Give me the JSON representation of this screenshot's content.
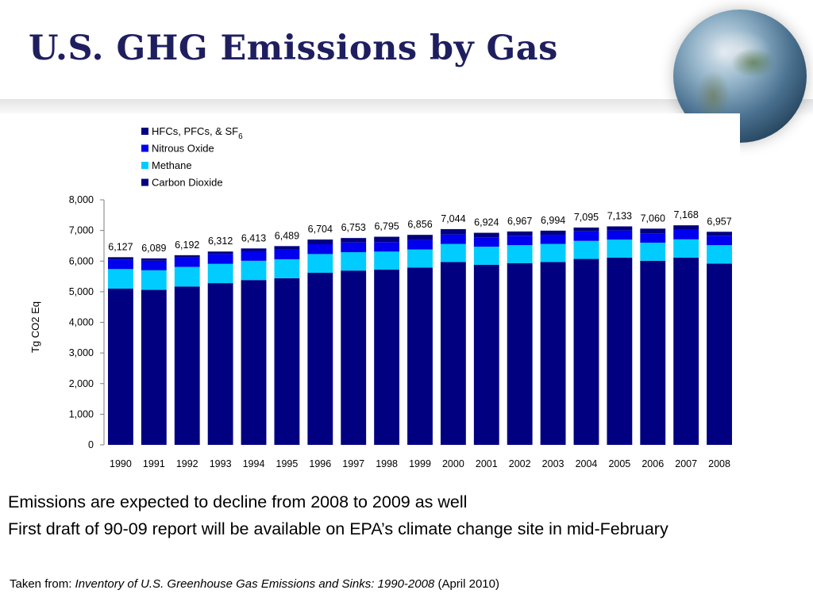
{
  "slide": {
    "title": "U.S. GHG Emissions by Gas",
    "bullets": [
      "Emissions are expected to decline from 2008 to 2009 as well",
      "First draft of 90-09 report will be available on EPA’s climate change site in mid-February"
    ],
    "source": {
      "prefix": "Taken from: ",
      "title": "Inventory of U.S. Greenhouse Gas Emissions and Sinks: 1990-2008",
      "suffix": " (April 2010)"
    }
  },
  "chart_data": {
    "type": "bar",
    "stacked": true,
    "title": "",
    "xlabel": "",
    "ylabel": "Tg CO2 Eq",
    "ylim": [
      0,
      8000
    ],
    "yticks": [
      0,
      1000,
      2000,
      3000,
      4000,
      5000,
      6000,
      7000,
      8000
    ],
    "ytick_labels": [
      "0",
      "1,000",
      "2,000",
      "3,000",
      "4,000",
      "5,000",
      "6,000",
      "7,000",
      "8,000"
    ],
    "categories": [
      "1990",
      "1991",
      "1992",
      "1993",
      "1994",
      "1995",
      "1996",
      "1997",
      "1998",
      "1999",
      "2000",
      "2001",
      "2002",
      "2003",
      "2004",
      "2005",
      "2006",
      "2007",
      "2008"
    ],
    "legend_position": "top",
    "series": [
      {
        "name": "Carbon Dioxide",
        "color": "#000080",
        "values": [
          5100,
          5060,
          5170,
          5280,
          5380,
          5440,
          5620,
          5690,
          5720,
          5790,
          5970,
          5880,
          5930,
          5970,
          6070,
          6110,
          6010,
          6110,
          5920
        ]
      },
      {
        "name": "Methane",
        "color": "#00ccff",
        "values": [
          640,
          640,
          640,
          630,
          630,
          620,
          610,
          600,
          590,
          590,
          590,
          590,
          590,
          590,
          590,
          590,
          590,
          600,
          600
        ]
      },
      {
        "name": "Nitrous Oxide",
        "color": "#0000ee",
        "values": [
          310,
          310,
          310,
          320,
          320,
          320,
          320,
          320,
          310,
          310,
          310,
          310,
          310,
          300,
          310,
          300,
          310,
          320,
          310
        ]
      },
      {
        "name": "HFCs, PFCs, & SF6",
        "color": "#000080",
        "legend_label": "HFCs, PFCs, & SF",
        "legend_sub": "6",
        "values": [
          77,
          79,
          72,
          82,
          83,
          109,
          154,
          143,
          175,
          166,
          174,
          144,
          137,
          134,
          125,
          133,
          150,
          138,
          127
        ]
      }
    ],
    "totals": [
      6127,
      6089,
      6192,
      6312,
      6413,
      6489,
      6704,
      6753,
      6795,
      6856,
      7044,
      6924,
      6967,
      6994,
      7095,
      7133,
      7060,
      7168,
      6957
    ],
    "total_labels": [
      "6,127",
      "6,089",
      "6,192",
      "6,312",
      "6,413",
      "6,489",
      "6,704",
      "6,753",
      "6,795",
      "6,856",
      "7,044",
      "6,924",
      "6,967",
      "6,994",
      "7,095",
      "7,133",
      "7,060",
      "7,168",
      "6,957"
    ]
  }
}
